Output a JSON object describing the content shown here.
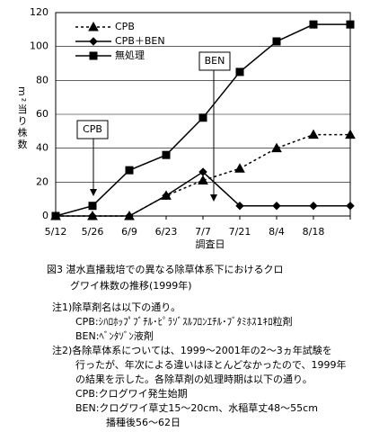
{
  "chart_data": {
    "type": "line",
    "y_label": "m²当り株数",
    "x_label": "調査日",
    "categories": [
      "5/12",
      "5/26",
      "6/9",
      "6/23",
      "7/7",
      "7/21",
      "8/4",
      "8/18",
      null
    ],
    "series": [
      {
        "name": "CPB",
        "color": "#000000",
        "marker": "triangle",
        "dash": "dotted",
        "values": [
          0,
          0,
          0,
          12,
          21,
          28,
          40,
          48,
          48
        ]
      },
      {
        "name": "CPB＋BEN",
        "color": "#000000",
        "marker": "diamond",
        "dash": "solid",
        "values": [
          0,
          0,
          0,
          12,
          26,
          6,
          6,
          6,
          6
        ]
      },
      {
        "name": "無処理",
        "color": "#000000",
        "marker": "square",
        "dash": "solid",
        "values": [
          0,
          6,
          27,
          36,
          58,
          85,
          103,
          113,
          113
        ]
      }
    ],
    "ylim": [
      0,
      120
    ],
    "yticks": [
      0,
      20,
      40,
      60,
      80,
      100,
      120
    ],
    "grid": true,
    "legend": "upper left",
    "annotations": [
      "CPB",
      "BEN"
    ]
  },
  "caption": [
    "図3  湛水直播栽培での異なる除草体系下におけるクロ",
    "グワイ株数の推移(1999年)"
  ],
  "notes": [
    "注1)除草剤名は以下の通り。",
    "CPB:ｼﾊﾛﾎｯﾌﾟﾌﾞﾁﾙ･ﾋﾟﾗｿﾞｽﾙﾌﾛﾝｴﾁﾙ･ﾌﾞﾀﾐﾎｽ1ｷﾛ粒剤",
    "BEN:ﾍﾞﾝﾀｿﾞﾝ液剤",
    "注2)各除草体系については、1999～2001年の2～3ヵ年試験を",
    "行ったが、年次による違いはほとんどなかったので、1999年",
    "の結果を示した。各除草剤の処理時期は以下の通り。",
    "CPB:クログワイ発生始期",
    "BEN:クログワイ草丈15～20cm、水稲草丈48～55cm",
    "播種後56～62日"
  ]
}
